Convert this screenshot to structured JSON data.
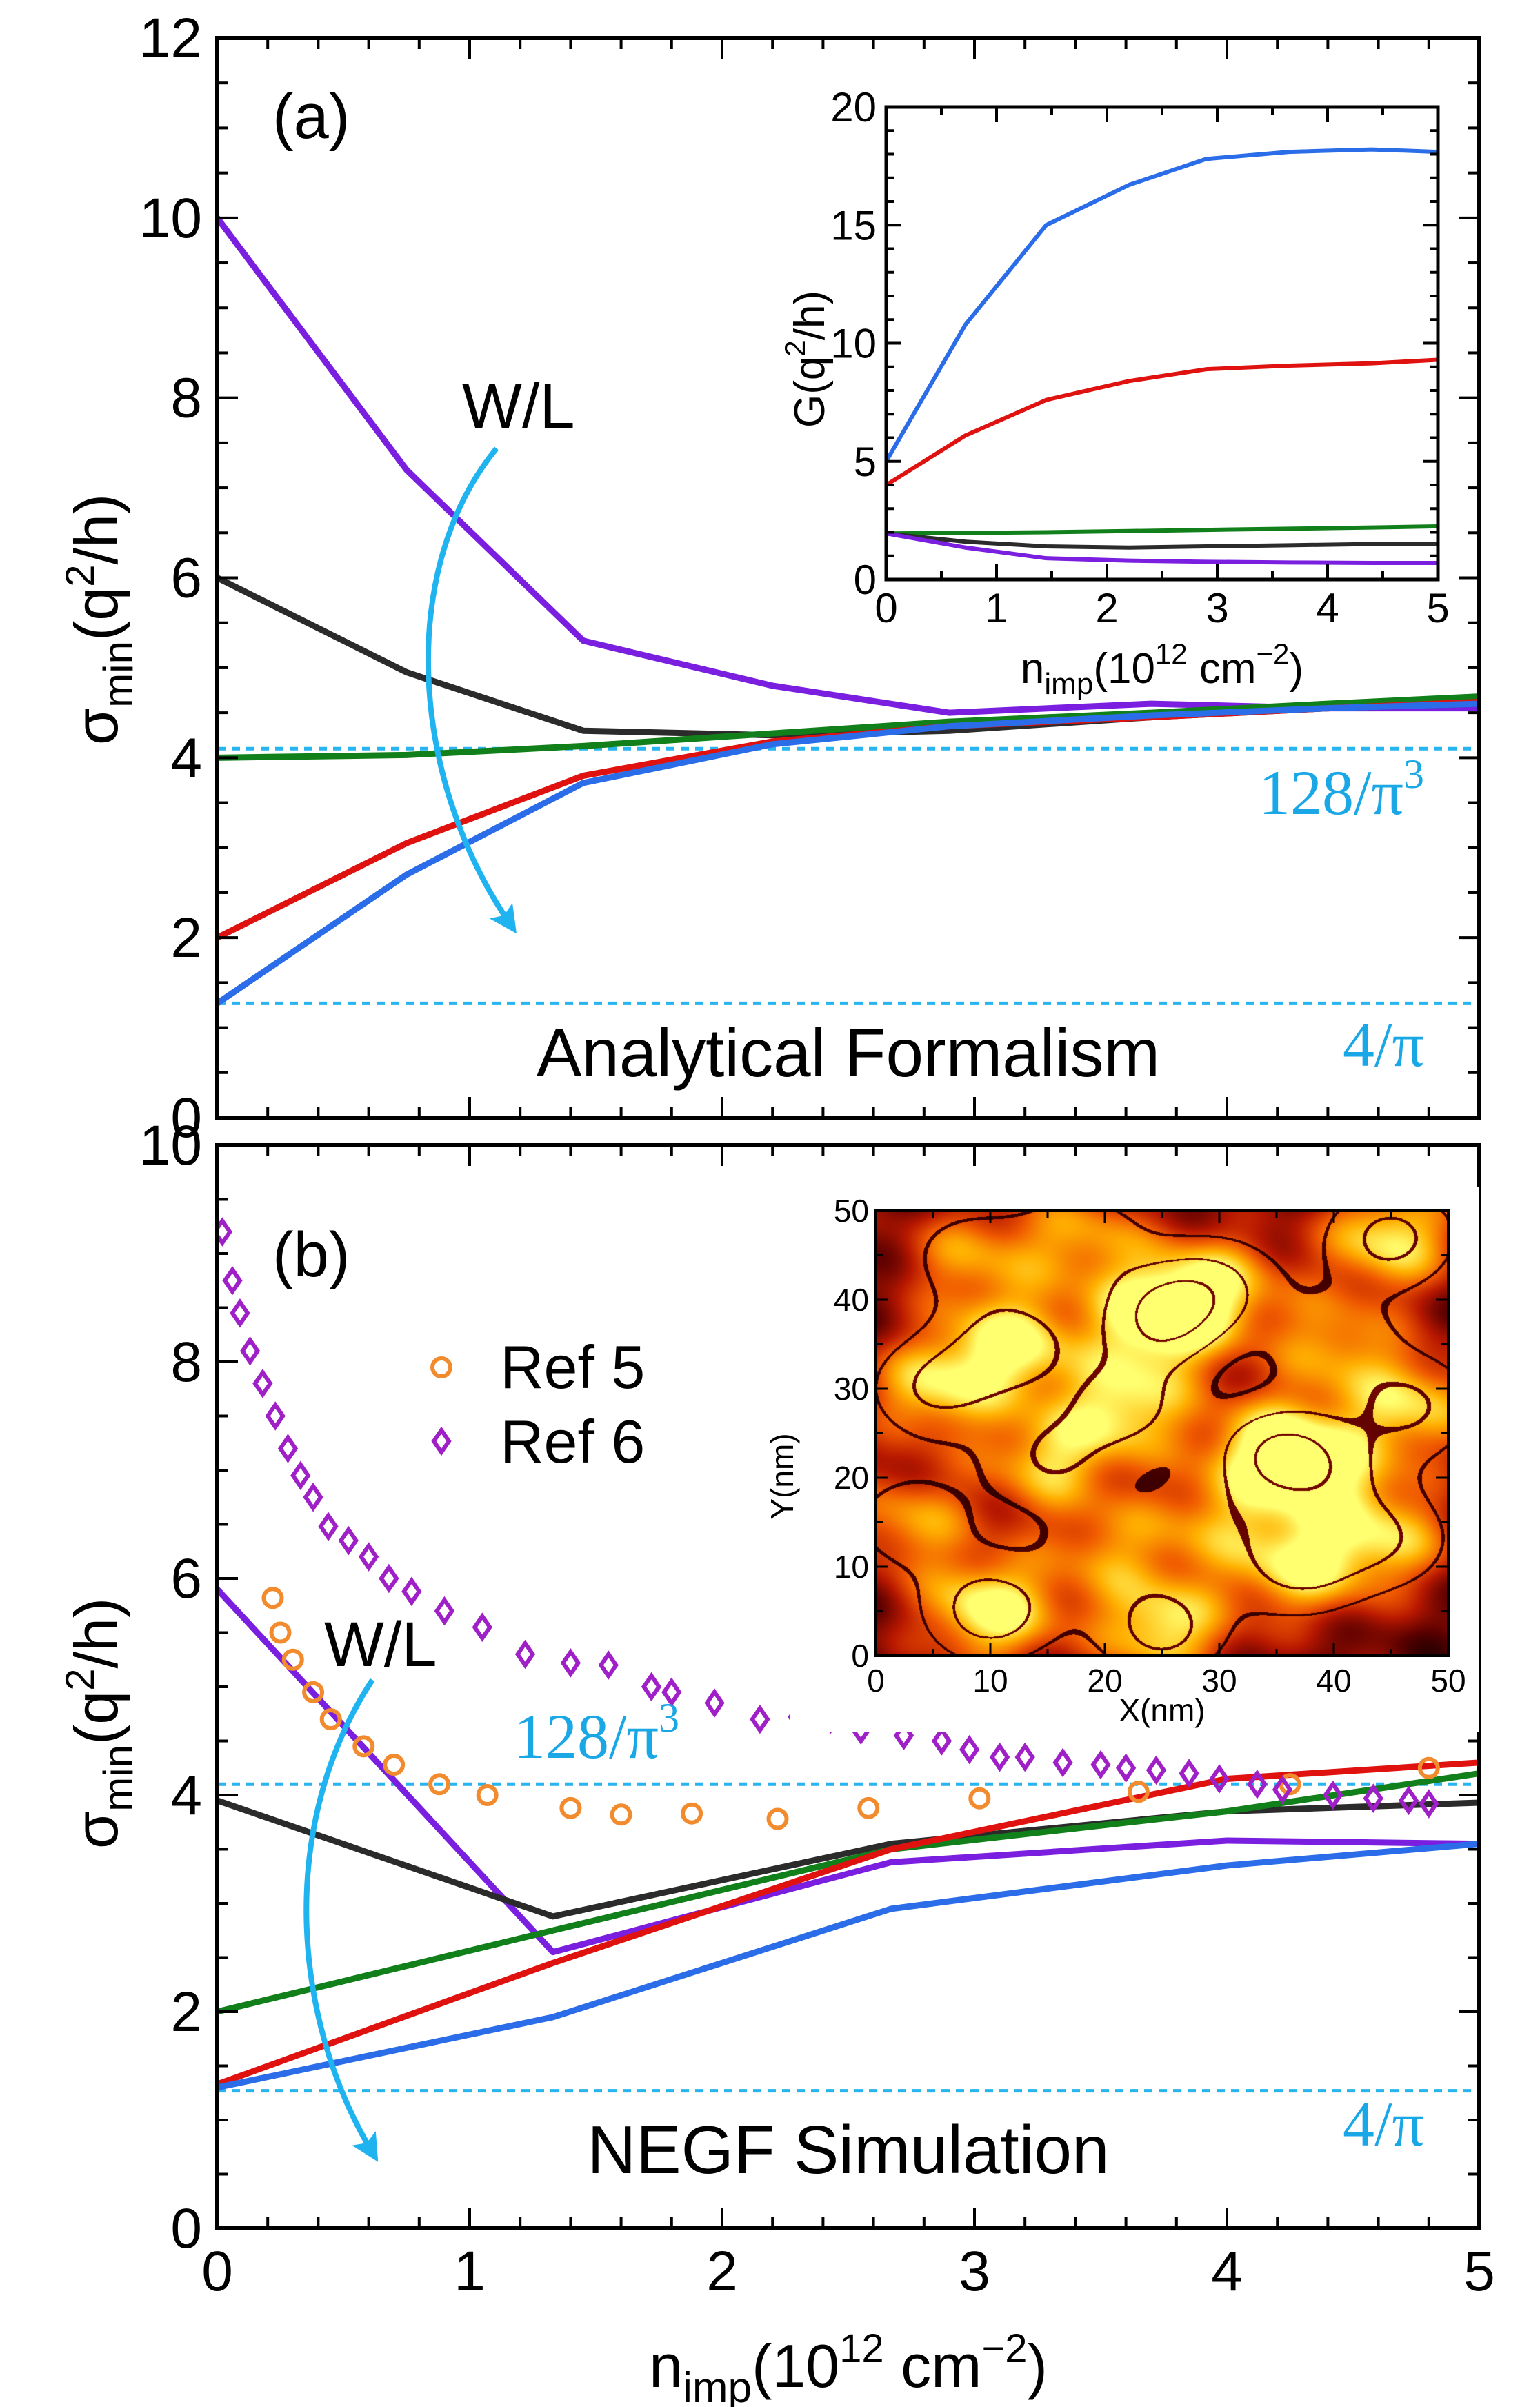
{
  "figure": {
    "x_axis_title_main": "n",
    "x_axis_title_sub": "imp",
    "x_axis_title_tail": "(10",
    "x_axis_title_exp": "12",
    "x_axis_title_unit": " cm",
    "x_axis_title_unit_exp": "−2",
    "x_axis_title_close": ")",
    "arrow_color": "#1fb3f0"
  },
  "chart_data": [
    {
      "id": "panel-a",
      "type": "line",
      "panel_label": "(a)",
      "method_title": "Analytical Formalism",
      "ylabel_main": "σ",
      "ylabel_sub": "min",
      "ylabel_open": "(q",
      "ylabel_exp": "2",
      "ylabel_close": "/h)",
      "xlim": [
        0,
        5
      ],
      "ylim": [
        0,
        12
      ],
      "x_ticks": [
        "0",
        "1",
        "2",
        "3",
        "4",
        "5"
      ],
      "y_ticks": [
        "0",
        "2",
        "4",
        "6",
        "8",
        "10",
        "12"
      ],
      "arrow_label": "W/L",
      "reference_lines": [
        {
          "value": 4.1,
          "label_main": "128/π",
          "label_exp": "3",
          "color": "#27b4ef"
        },
        {
          "value": 1.27,
          "label_main": "4/π",
          "label_exp": "",
          "color": "#27b4ef"
        }
      ],
      "series": [
        {
          "name": "purple",
          "color": "#7a1fe0",
          "x": [
            0,
            0.75,
            1.45,
            2.2,
            2.9,
            3.7,
            4.4,
            5
          ],
          "y": [
            10,
            7.2,
            5.3,
            4.8,
            4.5,
            4.6,
            4.55,
            4.55
          ]
        },
        {
          "name": "black",
          "color": "#2b2b2b",
          "x": [
            0,
            0.75,
            1.45,
            2.2,
            2.9,
            3.7,
            4.4,
            5
          ],
          "y": [
            6,
            4.95,
            4.3,
            4.25,
            4.3,
            4.45,
            4.55,
            4.6
          ]
        },
        {
          "name": "green",
          "color": "#12801a",
          "x": [
            0,
            0.75,
            1.45,
            2.2,
            2.9,
            3.7,
            4.4,
            5
          ],
          "y": [
            4,
            4.03,
            4.13,
            4.27,
            4.4,
            4.5,
            4.6,
            4.68
          ]
        },
        {
          "name": "red",
          "color": "#e0120f",
          "x": [
            0,
            0.75,
            1.45,
            2.2,
            2.9,
            3.7,
            4.4,
            5
          ],
          "y": [
            2,
            3.05,
            3.8,
            4.18,
            4.35,
            4.45,
            4.55,
            4.62
          ]
        },
        {
          "name": "blue",
          "color": "#2b6de8",
          "x": [
            0,
            0.75,
            1.45,
            2.2,
            2.9,
            3.7,
            4.4,
            5
          ],
          "y": [
            1.27,
            2.7,
            3.72,
            4.15,
            4.35,
            4.47,
            4.55,
            4.6
          ]
        }
      ],
      "inset": {
        "type": "line",
        "xlabel_main": "n",
        "xlabel_sub": "imp",
        "xlabel_tail": "(10",
        "xlabel_exp": "12",
        "xlabel_unit": " cm",
        "xlabel_unit_exp": "−2",
        "xlabel_close": ")",
        "ylabel_main": "G(q",
        "ylabel_exp": "2",
        "ylabel_close": "/h)",
        "xlim": [
          0,
          5
        ],
        "ylim": [
          0,
          20
        ],
        "x_ticks": [
          "0",
          "1",
          "2",
          "3",
          "4",
          "5"
        ],
        "y_ticks": [
          "0",
          "5",
          "10",
          "15",
          "20"
        ],
        "series": [
          {
            "name": "blue",
            "color": "#2b6de8",
            "x": [
              0,
              0.72,
              1.45,
              2.2,
              2.9,
              3.65,
              4.4,
              5
            ],
            "y": [
              5.0,
              10.8,
              15.0,
              16.7,
              17.8,
              18.1,
              18.2,
              18.1
            ]
          },
          {
            "name": "red",
            "color": "#e0120f",
            "x": [
              0,
              0.72,
              1.45,
              2.2,
              2.9,
              3.65,
              4.4,
              5
            ],
            "y": [
              4.0,
              6.1,
              7.6,
              8.4,
              8.9,
              9.05,
              9.15,
              9.3
            ]
          },
          {
            "name": "green",
            "color": "#12801a",
            "x": [
              0,
              0.72,
              1.45,
              2.2,
              2.9,
              3.65,
              4.4,
              5
            ],
            "y": [
              1.95,
              1.97,
              2.0,
              2.05,
              2.1,
              2.15,
              2.2,
              2.25
            ]
          },
          {
            "name": "black",
            "color": "#2b2b2b",
            "x": [
              0,
              0.72,
              1.45,
              2.2,
              2.9,
              3.65,
              4.4,
              5
            ],
            "y": [
              1.95,
              1.6,
              1.4,
              1.35,
              1.4,
              1.45,
              1.5,
              1.5
            ]
          },
          {
            "name": "purple",
            "color": "#7a1fe0",
            "x": [
              0,
              0.72,
              1.45,
              2.2,
              2.9,
              3.65,
              4.4,
              5
            ],
            "y": [
              1.95,
              1.35,
              0.9,
              0.8,
              0.75,
              0.72,
              0.7,
              0.7
            ]
          }
        ]
      }
    },
    {
      "id": "panel-b",
      "type": "line",
      "panel_label": "(b)",
      "method_title": "NEGF Simulation",
      "ylabel_main": "σ",
      "ylabel_sub": "min",
      "ylabel_open": "(q",
      "ylabel_exp": "2",
      "ylabel_close": "/h)",
      "xlim": [
        0,
        5
      ],
      "ylim": [
        0,
        10
      ],
      "x_ticks": [
        "0",
        "1",
        "2",
        "3",
        "4",
        "5"
      ],
      "y_ticks": [
        "0",
        "2",
        "4",
        "6",
        "8",
        "10"
      ],
      "arrow_label": "W/L",
      "reference_lines": [
        {
          "value": 4.1,
          "label_main": "128/π",
          "label_exp": "3",
          "color": "#27b4ef"
        },
        {
          "value": 1.27,
          "label_main": "4/π",
          "label_exp": "",
          "color": "#27b4ef"
        }
      ],
      "legend": [
        {
          "label": "Ref 5",
          "marker": "circle",
          "color": "#f28a2e"
        },
        {
          "label": "Ref 6",
          "marker": "diamond",
          "color": "#a020c8"
        }
      ],
      "series": [
        {
          "name": "purple",
          "color": "#7a1fe0",
          "x": [
            0,
            1.33,
            2.67,
            4.0,
            5
          ],
          "y": [
            5.9,
            2.55,
            3.38,
            3.58,
            3.55
          ]
        },
        {
          "name": "black",
          "color": "#2b2b2b",
          "x": [
            0,
            1.33,
            2.67,
            4.0,
            5
          ],
          "y": [
            3.95,
            2.88,
            3.55,
            3.85,
            3.93
          ]
        },
        {
          "name": "green",
          "color": "#12801a",
          "x": [
            0,
            1.33,
            2.67,
            4.0,
            5
          ],
          "y": [
            2.0,
            2.75,
            3.5,
            3.85,
            4.2
          ]
        },
        {
          "name": "red",
          "color": "#e0120f",
          "x": [
            0,
            1.33,
            2.67,
            4.0,
            5
          ],
          "y": [
            1.33,
            2.45,
            3.5,
            4.15,
            4.3
          ]
        },
        {
          "name": "blue",
          "color": "#2b6de8",
          "x": [
            0,
            1.33,
            2.67,
            4.0,
            5
          ],
          "y": [
            1.3,
            1.95,
            2.95,
            3.35,
            3.55
          ]
        }
      ],
      "scatter": [
        {
          "name": "Ref 5",
          "marker": "circle",
          "color": "#f28a2e",
          "x": [
            0.22,
            0.25,
            0.3,
            0.38,
            0.45,
            0.58,
            0.7,
            0.88,
            1.07,
            1.4,
            1.6,
            1.88,
            2.22,
            2.58,
            3.02,
            3.65,
            4.25,
            4.8
          ],
          "y": [
            5.82,
            5.5,
            5.25,
            4.95,
            4.7,
            4.45,
            4.28,
            4.1,
            4.0,
            3.88,
            3.82,
            3.83,
            3.78,
            3.88,
            3.97,
            4.03,
            4.1,
            4.25
          ]
        },
        {
          "name": "Ref 6",
          "marker": "diamond",
          "color": "#a020c8",
          "x": [
            0.02,
            0.06,
            0.09,
            0.13,
            0.18,
            0.23,
            0.28,
            0.33,
            0.38,
            0.44,
            0.52,
            0.6,
            0.68,
            0.77,
            0.9,
            1.05,
            1.22,
            1.4,
            1.55,
            1.72,
            1.8,
            1.97,
            2.15,
            2.3,
            2.43,
            2.55,
            2.72,
            2.87,
            2.98,
            3.1,
            3.2,
            3.35,
            3.5,
            3.6,
            3.72,
            3.85,
            3.97,
            4.12,
            4.22,
            4.42,
            4.58,
            4.72,
            4.8
          ],
          "y": [
            9.2,
            8.75,
            8.45,
            8.1,
            7.8,
            7.5,
            7.2,
            6.95,
            6.75,
            6.48,
            6.35,
            6.2,
            6.0,
            5.88,
            5.7,
            5.55,
            5.3,
            5.22,
            5.2,
            5.0,
            4.95,
            4.85,
            4.7,
            4.72,
            4.7,
            4.6,
            4.55,
            4.5,
            4.42,
            4.35,
            4.35,
            4.3,
            4.28,
            4.25,
            4.23,
            4.2,
            4.15,
            4.1,
            4.05,
            4.0,
            3.97,
            3.95,
            3.92
          ]
        }
      ],
      "inset": {
        "type": "heatmap",
        "xlabel": "X(nm)",
        "ylabel": "Y(nm)",
        "xlim": [
          0,
          50
        ],
        "ylim": [
          0,
          50
        ],
        "x_ticks": [
          "0",
          "10",
          "20",
          "30",
          "40",
          "50"
        ],
        "y_ticks": [
          "0",
          "10",
          "20",
          "30",
          "40",
          "50"
        ],
        "colormap": [
          "#000000",
          "#5a0000",
          "#b81800",
          "#f05a00",
          "#ffb000",
          "#ffff70"
        ],
        "peaks": [
          {
            "x": 25,
            "y": 38,
            "height": 1.0
          },
          {
            "x": 35,
            "y": 23,
            "height": 0.95
          },
          {
            "x": 45,
            "y": 47,
            "height": 0.8
          },
          {
            "x": 12,
            "y": 35,
            "height": 0.8
          },
          {
            "x": 5,
            "y": 30,
            "height": 0.7
          },
          {
            "x": 22,
            "y": 28,
            "height": 0.75
          },
          {
            "x": 15,
            "y": 22,
            "height": 0.65
          },
          {
            "x": 30,
            "y": 42,
            "height": 0.6
          },
          {
            "x": 47,
            "y": 28,
            "height": 0.7
          },
          {
            "x": 10,
            "y": 5,
            "height": 0.9
          },
          {
            "x": 25,
            "y": 3,
            "height": 0.8
          },
          {
            "x": 37,
            "y": 10,
            "height": 0.75
          },
          {
            "x": 45,
            "y": 13,
            "height": 0.6
          },
          {
            "x": 3,
            "y": 15,
            "height": 0.55
          },
          {
            "x": 40,
            "y": 35,
            "height": 0.55
          },
          {
            "x": 18,
            "y": 47,
            "height": 0.55
          },
          {
            "x": 29,
            "y": 15,
            "height": 0.45
          },
          {
            "x": 8,
            "y": 45,
            "height": 0.5
          },
          {
            "x": 20,
            "y": 12,
            "height": 0.45
          },
          {
            "x": 40,
            "y": 20,
            "height": 0.5
          }
        ]
      }
    }
  ]
}
